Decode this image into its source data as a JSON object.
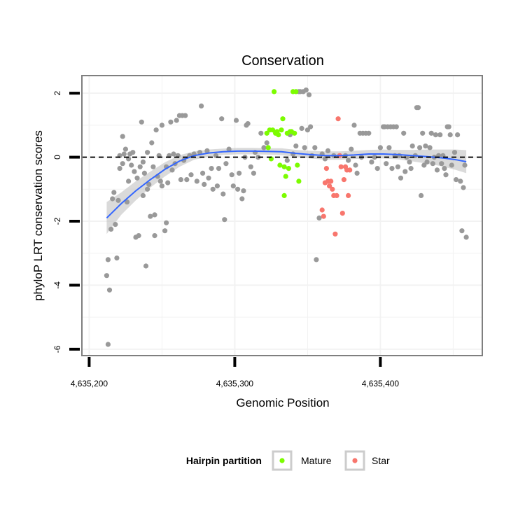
{
  "chart_data": {
    "type": "scatter",
    "title": "Conservation",
    "xlabel": "Genomic Position",
    "ylabel": "phyloP LRT conservation scores",
    "xlim": [
      4635195,
      4635470
    ],
    "ylim": [
      -6.2,
      2.55
    ],
    "x_ticks": [
      4635200,
      4635300,
      4635400
    ],
    "x_tick_labels": [
      "4,635,200",
      "4,635,300",
      "4,635,400"
    ],
    "y_ticks": [
      -6,
      -4,
      -2,
      0,
      2
    ],
    "y_tick_labels": [
      "-6",
      "-4",
      "-2",
      "0",
      "2"
    ],
    "grid": true,
    "reference_line": {
      "y": 0,
      "style": "dashed"
    },
    "legend": {
      "title": "Hairpin partition",
      "position": "bottom",
      "entries": [
        {
          "label": "Mature",
          "color": "#7cfc00"
        },
        {
          "label": "Star",
          "color": "#f8766d"
        }
      ]
    },
    "colors": {
      "other": "#999999",
      "mature": "#7cfc00",
      "star": "#f8766d",
      "smooth": "#3366ff",
      "ribbon": "#bbbbbb"
    },
    "series": [
      {
        "name": "Other",
        "points": [
          [
            4635212,
            -3.7
          ],
          [
            4635213,
            -5.85
          ],
          [
            4635213,
            -3.2
          ],
          [
            4635214,
            -4.15
          ],
          [
            4635215,
            -2.25
          ],
          [
            4635216,
            -1.3
          ],
          [
            4635217,
            -1.1
          ],
          [
            4635218,
            -2.1
          ],
          [
            4635219,
            -3.15
          ],
          [
            4635220,
            -1.35
          ],
          [
            4635221,
            0.05
          ],
          [
            4635221,
            -0.35
          ],
          [
            4635223,
            0.65
          ],
          [
            4635223,
            -0.2
          ],
          [
            4635224,
            0.1
          ],
          [
            4635225,
            0.25
          ],
          [
            4635226,
            -1.4
          ],
          [
            4635227,
            -0.05
          ],
          [
            4635227,
            -0.75
          ],
          [
            4635228,
            0.1
          ],
          [
            4635229,
            -0.25
          ],
          [
            4635230,
            0.15
          ],
          [
            4635231,
            -0.45
          ],
          [
            4635232,
            -2.5
          ],
          [
            4635233,
            -0.65
          ],
          [
            4635234,
            -2.45
          ],
          [
            4635235,
            -0.3
          ],
          [
            4635236,
            1.1
          ],
          [
            4635237,
            -0.15
          ],
          [
            4635237,
            -1.2
          ],
          [
            4635238,
            -0.5
          ],
          [
            4635239,
            -3.4
          ],
          [
            4635240,
            0.15
          ],
          [
            4635240,
            -1.0
          ],
          [
            4635241,
            -0.85
          ],
          [
            4635242,
            -1.85
          ],
          [
            4635243,
            0.45
          ],
          [
            4635244,
            -0.3
          ],
          [
            4635245,
            -1.8
          ],
          [
            4635245,
            -2.45
          ],
          [
            4635246,
            0.85
          ],
          [
            4635247,
            -0.6
          ],
          [
            4635248,
            0.05
          ],
          [
            4635249,
            -0.75
          ],
          [
            4635250,
            1.0
          ],
          [
            4635250,
            -0.9
          ],
          [
            4635252,
            -2.3
          ],
          [
            4635253,
            -2.05
          ],
          [
            4635253,
            -0.3
          ],
          [
            4635254,
            -0.8
          ],
          [
            4635255,
            0.05
          ],
          [
            4635256,
            1.1
          ],
          [
            4635257,
            -0.4
          ],
          [
            4635258,
            0.1
          ],
          [
            4635259,
            -0.2
          ],
          [
            4635260,
            1.15
          ],
          [
            4635261,
            0.05
          ],
          [
            4635262,
            1.3
          ],
          [
            4635263,
            -0.7
          ],
          [
            4635264,
            1.3
          ],
          [
            4635265,
            -0.1
          ],
          [
            4635266,
            1.3
          ],
          [
            4635267,
            -0.7
          ],
          [
            4635269,
            0.05
          ],
          [
            4635270,
            -0.55
          ],
          [
            4635272,
            0.1
          ],
          [
            4635274,
            -0.75
          ],
          [
            4635276,
            0.15
          ],
          [
            4635277,
            1.6
          ],
          [
            4635278,
            -0.5
          ],
          [
            4635279,
            -0.85
          ],
          [
            4635281,
            0.2
          ],
          [
            4635282,
            -0.65
          ],
          [
            4635284,
            -0.35
          ],
          [
            4635285,
            -1.0
          ],
          [
            4635287,
            0.05
          ],
          [
            4635288,
            -0.9
          ],
          [
            4635289,
            -0.35
          ],
          [
            4635291,
            1.2
          ],
          [
            4635292,
            -1.15
          ],
          [
            4635293,
            -1.95
          ],
          [
            4635294,
            -0.2
          ],
          [
            4635296,
            0.25
          ],
          [
            4635298,
            -0.55
          ],
          [
            4635299,
            -0.9
          ],
          [
            4635301,
            1.15
          ],
          [
            4635302,
            -1.0
          ],
          [
            4635303,
            -0.5
          ],
          [
            4635305,
            -1.3
          ],
          [
            4635306,
            -1.05
          ],
          [
            4635307,
            0.0
          ],
          [
            4635308,
            1.0
          ],
          [
            4635309,
            1.05
          ],
          [
            4635311,
            -0.3
          ],
          [
            4635313,
            -0.5
          ],
          [
            4635314,
            0.15
          ],
          [
            4635316,
            0.0
          ],
          [
            4635318,
            0.75
          ],
          [
            4635320,
            0.3
          ],
          [
            4635322,
            0.45
          ],
          [
            4635336,
            -0.1
          ],
          [
            4635338,
            0.7
          ],
          [
            4635340,
            0.1
          ],
          [
            4635342,
            0.35
          ],
          [
            4635344,
            2.05
          ],
          [
            4635345,
            2.05
          ],
          [
            4635346,
            0.9
          ],
          [
            4635347,
            2.05
          ],
          [
            4635348,
            0.3
          ],
          [
            4635349,
            2.1
          ],
          [
            4635350,
            0.85
          ],
          [
            4635351,
            1.95
          ],
          [
            4635352,
            0.95
          ],
          [
            4635353,
            0.05
          ],
          [
            4635355,
            0.3
          ],
          [
            4635356,
            -3.2
          ],
          [
            4635358,
            -1.9
          ],
          [
            4635360,
            0.1
          ],
          [
            4635362,
            -0.05
          ],
          [
            4635364,
            0.2
          ],
          [
            4635368,
            0.05
          ],
          [
            4635376,
            0.05
          ],
          [
            4635378,
            -0.1
          ],
          [
            4635380,
            0.25
          ],
          [
            4635382,
            1.0
          ],
          [
            4635383,
            -0.25
          ],
          [
            4635384,
            -0.5
          ],
          [
            4635386,
            0.75
          ],
          [
            4635387,
            0.0
          ],
          [
            4635388,
            0.75
          ],
          [
            4635390,
            0.75
          ],
          [
            4635392,
            0.75
          ],
          [
            4635394,
            -0.15
          ],
          [
            4635396,
            0.0
          ],
          [
            4635398,
            -0.35
          ],
          [
            4635400,
            0.3
          ],
          [
            4635402,
            0.95
          ],
          [
            4635403,
            0.95
          ],
          [
            4635404,
            -0.2
          ],
          [
            4635405,
            0.95
          ],
          [
            4635406,
            0.3
          ],
          [
            4635407,
            0.95
          ],
          [
            4635408,
            -0.35
          ],
          [
            4635409,
            0.95
          ],
          [
            4635410,
            0.05
          ],
          [
            4635411,
            0.95
          ],
          [
            4635412,
            -0.3
          ],
          [
            4635413,
            0.05
          ],
          [
            4635414,
            -0.65
          ],
          [
            4635416,
            0.75
          ],
          [
            4635417,
            -0.45
          ],
          [
            4635418,
            0.0
          ],
          [
            4635420,
            -0.15
          ],
          [
            4635421,
            -0.35
          ],
          [
            4635422,
            0.35
          ],
          [
            4635424,
            0.05
          ],
          [
            4635425,
            1.55
          ],
          [
            4635426,
            1.55
          ],
          [
            4635427,
            0.3
          ],
          [
            4635428,
            -1.2
          ],
          [
            4635429,
            0.75
          ],
          [
            4635430,
            -0.25
          ],
          [
            4635431,
            0.35
          ],
          [
            4635432,
            -0.15
          ],
          [
            4635434,
            0.3
          ],
          [
            4635435,
            0.75
          ],
          [
            4635436,
            -0.2
          ],
          [
            4635437,
            0.0
          ],
          [
            4635438,
            0.7
          ],
          [
            4635439,
            -0.4
          ],
          [
            4635440,
            0.05
          ],
          [
            4635441,
            0.7
          ],
          [
            4635442,
            -0.2
          ],
          [
            4635443,
            0.05
          ],
          [
            4635444,
            -0.35
          ],
          [
            4635445,
            -0.55
          ],
          [
            4635446,
            0.95
          ],
          [
            4635447,
            0.95
          ],
          [
            4635448,
            0.7
          ],
          [
            4635449,
            -0.25
          ],
          [
            4635451,
            0.15
          ],
          [
            4635452,
            -0.7
          ],
          [
            4635453,
            0.7
          ],
          [
            4635455,
            -0.75
          ],
          [
            4635456,
            -2.3
          ],
          [
            4635457,
            -0.95
          ],
          [
            4635458,
            -0.25
          ],
          [
            4635459,
            -2.5
          ]
        ]
      },
      {
        "name": "Mature",
        "points": [
          [
            4635322,
            0.75
          ],
          [
            4635323,
            0.3
          ],
          [
            4635324,
            0.85
          ],
          [
            4635325,
            -0.05
          ],
          [
            4635326,
            0.85
          ],
          [
            4635327,
            2.05
          ],
          [
            4635328,
            0.75
          ],
          [
            4635329,
            0.8
          ],
          [
            4635330,
            0.7
          ],
          [
            4635331,
            -0.25
          ],
          [
            4635332,
            0.85
          ],
          [
            4635333,
            1.2
          ],
          [
            4635334,
            -1.2
          ],
          [
            4635334,
            -0.3
          ],
          [
            4635335,
            -0.6
          ],
          [
            4635336,
            0.75
          ],
          [
            4635337,
            -0.35
          ],
          [
            4635338,
            0.8
          ],
          [
            4635339,
            0.8
          ],
          [
            4635340,
            2.05
          ],
          [
            4635341,
            0.75
          ],
          [
            4635342,
            2.05
          ],
          [
            4635343,
            -0.25
          ],
          [
            4635344,
            -0.75
          ]
        ]
      },
      {
        "name": "Star",
        "points": [
          [
            4635360,
            -1.65
          ],
          [
            4635361,
            -1.85
          ],
          [
            4635362,
            -0.8
          ],
          [
            4635363,
            -0.35
          ],
          [
            4635364,
            -0.75
          ],
          [
            4635365,
            -0.9
          ],
          [
            4635366,
            -0.75
          ],
          [
            4635367,
            -1.0
          ],
          [
            4635368,
            -1.2
          ],
          [
            4635369,
            -2.4
          ],
          [
            4635370,
            -1.2
          ],
          [
            4635371,
            1.2
          ],
          [
            4635372,
            0.05
          ],
          [
            4635373,
            -0.3
          ],
          [
            4635374,
            -1.75
          ],
          [
            4635375,
            -0.7
          ],
          [
            4635376,
            -0.3
          ],
          [
            4635377,
            -0.4
          ],
          [
            4635378,
            -1.2
          ],
          [
            4635379,
            -0.4
          ]
        ]
      }
    ],
    "smooth_line": {
      "x": [
        4635212,
        4635222,
        4635232,
        4635242,
        4635252,
        4635262,
        4635272,
        4635282,
        4635292,
        4635302,
        4635312,
        4635322,
        4635332,
        4635342,
        4635352,
        4635362,
        4635372,
        4635382,
        4635392,
        4635402,
        4635412,
        4635422,
        4635432,
        4635442,
        4635452,
        4635459
      ],
      "y": [
        -1.9,
        -1.45,
        -1.05,
        -0.7,
        -0.38,
        -0.12,
        0.05,
        0.13,
        0.17,
        0.19,
        0.19,
        0.18,
        0.17,
        0.12,
        0.08,
        0.05,
        0.05,
        0.07,
        0.1,
        0.1,
        0.08,
        0.05,
        0.02,
        -0.02,
        -0.08,
        -0.14
      ],
      "lower": [
        -2.4,
        -1.8,
        -1.35,
        -0.95,
        -0.6,
        -0.3,
        -0.08,
        0.02,
        0.07,
        0.09,
        0.09,
        0.08,
        0.06,
        0.01,
        -0.04,
        -0.08,
        -0.08,
        -0.06,
        -0.03,
        -0.04,
        -0.07,
        -0.13,
        -0.2,
        -0.28,
        -0.4,
        -0.5
      ],
      "upper": [
        -1.4,
        -1.1,
        -0.75,
        -0.45,
        -0.16,
        0.06,
        0.18,
        0.24,
        0.27,
        0.29,
        0.29,
        0.28,
        0.28,
        0.23,
        0.2,
        0.18,
        0.18,
        0.2,
        0.23,
        0.24,
        0.23,
        0.23,
        0.24,
        0.24,
        0.24,
        0.22
      ]
    }
  }
}
